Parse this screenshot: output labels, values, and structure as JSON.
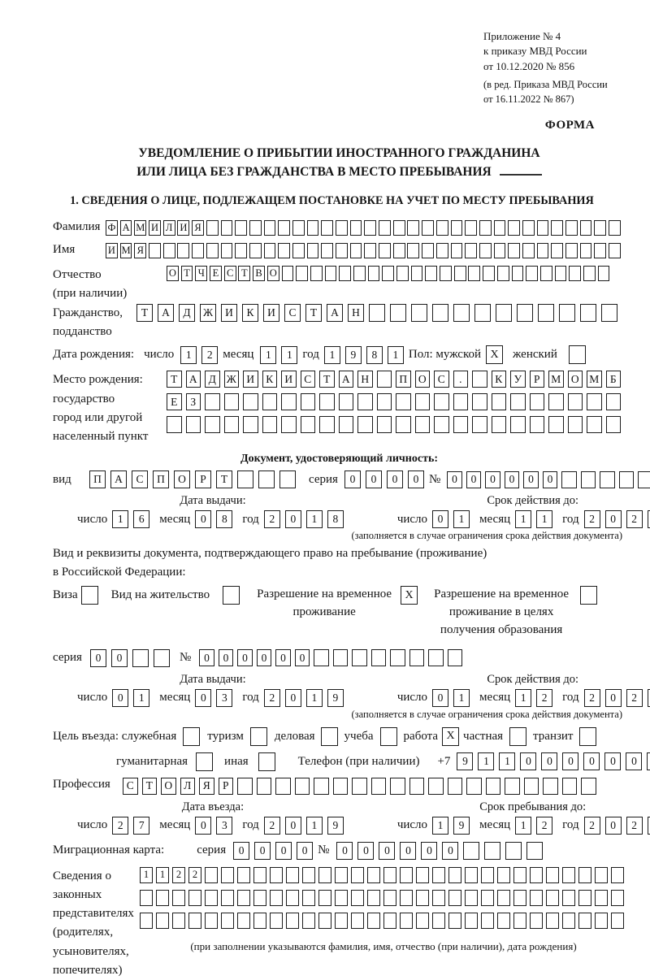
{
  "meta": {
    "appendix": [
      "Приложение № 4",
      "к приказу МВД России",
      "от 10.12.2020 № 856"
    ],
    "amendment": [
      "(в ред. Приказа МВД России",
      "от 16.11.2022 № 867)"
    ],
    "form_label": "ФОРМА"
  },
  "title": {
    "line1": "УВЕДОМЛЕНИЕ О ПРИБЫТИИ ИНОСТРАННОГО ГРАЖДАНИНА",
    "line2": "ИЛИ ЛИЦА БЕЗ ГРАЖДАНСТВА В МЕСТО ПРЕБЫВАНИЯ"
  },
  "section1_heading": "1. СВЕДЕНИЯ О ЛИЦЕ, ПОДЛЕЖАЩЕМ ПОСТАНОВКЕ НА УЧЕТ ПО МЕСТУ ПРЕБЫВАНИЯ",
  "labels": {
    "day": "число",
    "month": "месяц",
    "year": "год",
    "series": "серия",
    "number": "№",
    "issue_date": "Дата выдачи:",
    "valid_until": "Срок действия до:",
    "entry_date": "Дата въезда:",
    "stay_until": "Срок пребывания до:",
    "limited_note": "(заполняется в случае ограничения срока действия документа)"
  },
  "person": {
    "surname": {
      "label": "Фамилия",
      "value": "ФАМИЛИЯ",
      "cells": 36
    },
    "given_name": {
      "label": "Имя",
      "value": "ИМЯ",
      "cells": 36
    },
    "patronymic": {
      "label": "Отчество",
      "label2": "(при наличии)",
      "value": "ОТЧЕСТВО",
      "cells": 31
    },
    "citizenship": {
      "label": "Гражданство,",
      "label2": "подданство",
      "value": "ТАДЖИКИСТАН",
      "cells": 23
    },
    "birth_date": {
      "label": "Дата рождения:",
      "day": "12",
      "month": "11",
      "year": "1981"
    },
    "sex": {
      "label": "Пол: мужской",
      "male_mark": "X",
      "female_label": "женский",
      "female_mark": ""
    },
    "birth_place": {
      "label_lines": [
        "Место рождения:",
        "государство",
        "город или другой",
        "населенный пункт"
      ],
      "row1": {
        "value": "ТАДЖИКИСТАН ПОС. КУРМОМБ",
        "cells": 24
      },
      "row2": {
        "value": "ЕЗ",
        "cells": 24
      },
      "row3": {
        "value": "",
        "cells": 24
      }
    }
  },
  "identity_doc": {
    "heading": "Документ, удостоверяющий личность:",
    "kind": {
      "label": "вид",
      "value": "ПАСПОРТ",
      "cells": 10
    },
    "series": {
      "value": "0000",
      "cells": 4
    },
    "number": {
      "value": "000000",
      "cells": 11
    },
    "issue_date": {
      "day": "16",
      "month": "08",
      "year": "2018"
    },
    "valid_until": {
      "day": "01",
      "month": "11",
      "year": "2025"
    }
  },
  "residence_doc": {
    "intro_line1": "Вид и реквизиты документа, подтверждающего право на пребывание (проживание)",
    "intro_line2": "в Российской Федерации:",
    "options": [
      {
        "label": "Виза",
        "mark": ""
      },
      {
        "label": "Вид на жительство",
        "mark": ""
      },
      {
        "label": "Разрешение на временное проживание",
        "mark": "X"
      },
      {
        "label": "Разрешение на временное проживание в целях получения образования",
        "mark": ""
      }
    ],
    "series": {
      "value": "00",
      "cells": 4
    },
    "number": {
      "value": "000000",
      "cells": 14
    },
    "issue_date": {
      "day": "01",
      "month": "03",
      "year": "2019"
    },
    "valid_until": {
      "day": "01",
      "month": "12",
      "year": "2025"
    }
  },
  "visit": {
    "purpose_label": "Цель въезда: служебная",
    "purposes": [
      {
        "label": "туризм",
        "mark": ""
      },
      {
        "label": "деловая",
        "mark": ""
      },
      {
        "label": "учеба",
        "mark": ""
      },
      {
        "label": "работа",
        "mark": "X"
      },
      {
        "label": "частная",
        "mark": ""
      },
      {
        "label": "транзит",
        "mark": ""
      },
      {
        "label": "гуманитарная",
        "mark": ""
      },
      {
        "label": "иная",
        "mark": ""
      }
    ],
    "first_purpose_mark": "",
    "phone": {
      "label": "Телефон (при наличии)",
      "prefix": "+7",
      "value": "911000000",
      "cells": 10
    },
    "profession": {
      "label": "Профессия",
      "value": "СТОЛЯР",
      "cells": 25
    },
    "entry_date": {
      "day": "27",
      "month": "03",
      "year": "2019"
    },
    "stay_until": {
      "day": "19",
      "month": "12",
      "year": "2025"
    },
    "migration_card": {
      "label": "Миграционная карта:",
      "series": {
        "value": "0000",
        "cells": 4
      },
      "number": {
        "value": "000000",
        "cells": 10
      }
    }
  },
  "representatives": {
    "label_lines": [
      "Сведения о",
      "законных",
      "представителях",
      "(родителях,",
      "усыновителях,",
      "попечителях)"
    ],
    "row1": {
      "value": "1122",
      "cells": 30
    },
    "row2": {
      "value": "",
      "cells": 30
    },
    "row3": {
      "value": "",
      "cells": 30
    },
    "note": "(при заполнении указываются фамилия, имя, отчество (при наличии), дата рождения)"
  }
}
